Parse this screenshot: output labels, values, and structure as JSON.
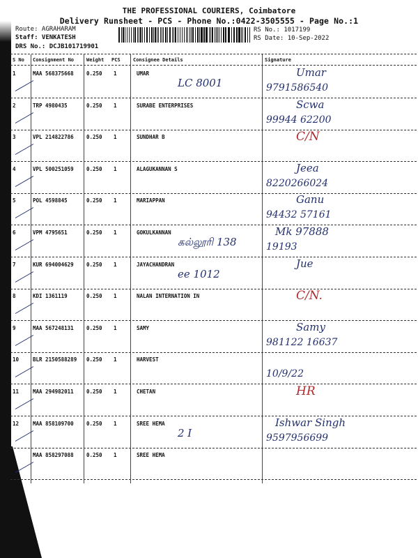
{
  "header": {
    "company": "THE PROFESSIONAL COURIERS, Coimbatore",
    "subtitle": "Delivery Runsheet - PCS - Phone No.:0422-3505555 - Page No.:1",
    "route": "Route: AGRAHARAM",
    "staff": "Staff: VENKATESH",
    "drs": "DRS No.: DCJB101719901",
    "rs_no": "RS No.: 1017199",
    "rs_date": "RS Date: 10-Sep-2022"
  },
  "columns": {
    "sno": "S No",
    "consignment": "Consignment No",
    "weight": "Weight",
    "pcs": "PCS",
    "consignee": "Consignee Details",
    "signature": "Signature"
  },
  "rows": [
    {
      "sno": "1",
      "consignment": "MAA 568375668",
      "weight": "0.250",
      "pcs": "1",
      "consignee": "UMAR",
      "note": "LC 8001",
      "sig": "Umar",
      "sig2": "9791586540",
      "sig_color": "blue"
    },
    {
      "sno": "2",
      "consignment": "TRP 4980435",
      "weight": "0.250",
      "pcs": "1",
      "consignee": "SURABE ENTERPRISES",
      "note": "",
      "sig": "Scwa",
      "sig2": "99944 62200",
      "sig_color": "blue"
    },
    {
      "sno": "3",
      "consignment": "VPL 214822786",
      "weight": "0.250",
      "pcs": "1",
      "consignee": "SUNDHAR B",
      "note": "",
      "sig": "C/N",
      "sig2": "",
      "sig_color": "red"
    },
    {
      "sno": "4",
      "consignment": "VPL 500251059",
      "weight": "0.250",
      "pcs": "1",
      "consignee": "ALAGUKANNAN S",
      "note": "",
      "sig": "Jeea",
      "sig2": "8220266024",
      "sig_color": "blue"
    },
    {
      "sno": "5",
      "consignment": "POL 4598845",
      "weight": "0.250",
      "pcs": "1",
      "consignee": "MARIAPPAN",
      "note": "",
      "sig": "Ganu",
      "sig2": "94432 57161",
      "sig_color": "blue"
    },
    {
      "sno": "6",
      "consignment": "VPM 4795651",
      "weight": "0.250",
      "pcs": "1",
      "consignee": "GOKULKANNAN",
      "note": "கல்லூரி 138",
      "sig": "Mk 97888",
      "sig2": "19193",
      "sig_color": "blue"
    },
    {
      "sno": "7",
      "consignment": "KUR 694004629",
      "weight": "0.250",
      "pcs": "1",
      "consignee": "JAYACHANDRAN",
      "note": "ee 1012",
      "sig": "Jue",
      "sig2": "",
      "sig_color": "blue"
    },
    {
      "sno": "8",
      "consignment": "KDI 1361119",
      "weight": "0.250",
      "pcs": "1",
      "consignee": "NALAN INTERNATION IN",
      "note": "",
      "sig": "C/N.",
      "sig2": "",
      "sig_color": "red"
    },
    {
      "sno": "9",
      "consignment": "MAA 567248131",
      "weight": "0.250",
      "pcs": "1",
      "consignee": "SAMY",
      "note": "",
      "sig": "Samy",
      "sig2": "981122 16637",
      "sig_color": "blue"
    },
    {
      "sno": "10",
      "consignment": "BLR 2150588289",
      "weight": "0.250",
      "pcs": "1",
      "consignee": "HARVEST",
      "note": "",
      "sig": "",
      "sig2": "10/9/22",
      "sig_color": "blue"
    },
    {
      "sno": "11",
      "consignment": "MAA 294982011",
      "weight": "0.250",
      "pcs": "1",
      "consignee": "CHETAN",
      "note": "",
      "sig": "HR",
      "sig2": "",
      "sig_color": "red"
    },
    {
      "sno": "12",
      "consignment": "MAA 858109700",
      "weight": "0.250",
      "pcs": "1",
      "consignee": "SREE HEMA",
      "note": "2 I",
      "sig": "Ishwar Singh",
      "sig2": "9597956699",
      "sig_color": "blue"
    },
    {
      "sno": "",
      "consignment": "MAA 858297088",
      "weight": "0.250",
      "pcs": "1",
      "consignee": "SREE HEMA",
      "note": "",
      "sig": "",
      "sig2": "",
      "sig_color": "blue"
    }
  ],
  "colors": {
    "ink_blue": "#23306e",
    "ink_red": "#b0282c"
  }
}
